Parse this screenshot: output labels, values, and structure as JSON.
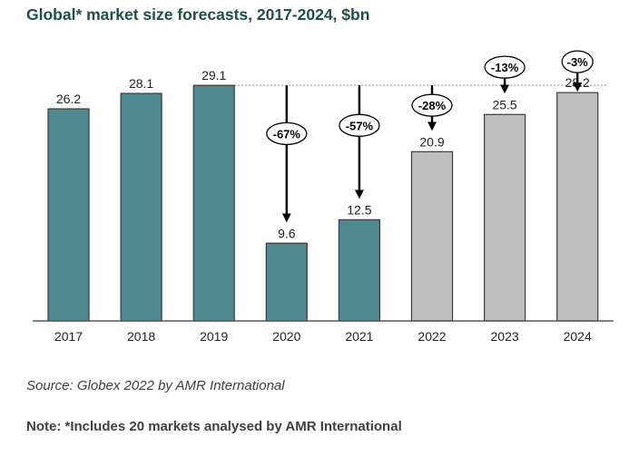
{
  "chart_data": {
    "type": "bar",
    "title": "Global* market size forecasts, 2017-2024, $bn",
    "xlabel": "",
    "ylabel": "",
    "ylim": [
      0,
      29.1
    ],
    "grid": false,
    "categories": [
      "2017",
      "2018",
      "2019",
      "2020",
      "2021",
      "2022",
      "2023",
      "2024"
    ],
    "values": [
      26.2,
      28.1,
      29.1,
      9.6,
      12.5,
      20.9,
      25.5,
      28.2
    ],
    "value_labels": [
      "26.2",
      "28.1",
      "29.1",
      "9.6",
      "12.5",
      "20.9",
      "25.5",
      "28.2"
    ],
    "series_kind": [
      "actual",
      "actual",
      "actual",
      "actual",
      "actual",
      "forecast",
      "forecast",
      "forecast"
    ],
    "colors": {
      "actual": "#4e8890",
      "forecast": "#bfbfbf",
      "outline": "#3a3a3a",
      "title": "#1e4f4a"
    },
    "reference_line": {
      "value": 29.1,
      "style": "dotted",
      "from_category": "2019"
    },
    "annotations": [
      {
        "category": "2020",
        "label": "-67%"
      },
      {
        "category": "2021",
        "label": "-57%"
      },
      {
        "category": "2022",
        "label": "-28%"
      },
      {
        "category": "2023",
        "label": "-13%"
      },
      {
        "category": "2024",
        "label": "-3%"
      }
    ]
  },
  "footer": {
    "source": "Source: Globex 2022 by AMR International",
    "note": "Note: *Includes 20 markets analysed by AMR International"
  }
}
